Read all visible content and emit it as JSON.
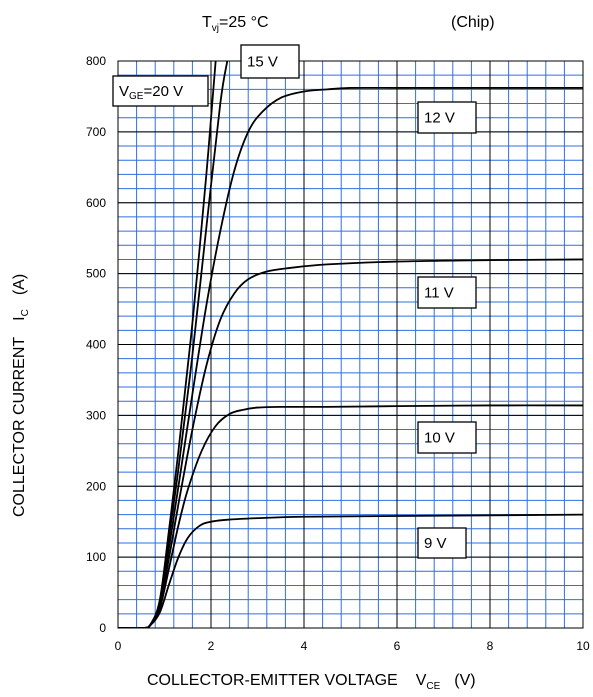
{
  "header": {
    "temperature_main": "T",
    "temperature_sub": "vj",
    "temperature_value": "=25 °C",
    "chip": "(Chip)"
  },
  "axes": {
    "xlabel_main": "COLLECTOR-EMITTER VOLTAGE",
    "xlabel_symbol": "V",
    "xlabel_sub": "CE",
    "xlabel_unit": "(V)",
    "ylabel_main": "COLLECTOR CURRENT",
    "ylabel_symbol": "I",
    "ylabel_sub": "C",
    "ylabel_unit": "(A)"
  },
  "chart_data": {
    "type": "line",
    "title": "",
    "xlim": [
      0,
      10
    ],
    "ylim": [
      0,
      800
    ],
    "x_ticks": [
      0,
      2,
      4,
      6,
      8,
      10
    ],
    "y_ticks": [
      0,
      100,
      200,
      300,
      400,
      500,
      600,
      700,
      800
    ],
    "grid": true,
    "minor_grid_divisions": {
      "x": 5,
      "y": 5
    },
    "colors": {
      "grid": "#2f6fe0",
      "major_grid": "#000000",
      "curve": "#000000",
      "background": "#ffffff"
    },
    "series": [
      {
        "name": "V_GE=20 V",
        "label_main": "V",
        "label_sub": "GE",
        "label_rest": "=20 V",
        "x": [
          0,
          0.55,
          0.7,
          0.9,
          1.1,
          1.3,
          1.6,
          1.9,
          2.1
        ],
        "y": [
          0,
          0,
          5,
          40,
          140,
          250,
          430,
          640,
          800
        ]
      },
      {
        "name": "15 V",
        "label": "15 V",
        "x": [
          0,
          0.55,
          0.7,
          0.9,
          1.1,
          1.3,
          1.6,
          1.9,
          2.2,
          2.35
        ],
        "y": [
          0,
          0,
          5,
          38,
          130,
          225,
          385,
          565,
          740,
          800
        ]
      },
      {
        "name": "12 V",
        "label": "12 V",
        "x": [
          0,
          0.55,
          0.7,
          0.9,
          1.1,
          1.3,
          1.6,
          1.9,
          2.2,
          2.5,
          2.8,
          3.1,
          3.5,
          4.0,
          4.5,
          5.0,
          6.0,
          8.0,
          10.0
        ],
        "y": [
          0,
          0,
          5,
          35,
          115,
          200,
          330,
          455,
          560,
          645,
          700,
          728,
          748,
          757,
          760,
          762,
          762,
          762,
          762
        ]
      },
      {
        "name": "11 V",
        "label": "11 V",
        "x": [
          0,
          0.55,
          0.7,
          0.9,
          1.1,
          1.3,
          1.6,
          1.9,
          2.2,
          2.5,
          2.8,
          3.2,
          3.7,
          4.5,
          6.0,
          8.0,
          10.0
        ],
        "y": [
          0,
          0,
          5,
          32,
          100,
          175,
          280,
          370,
          435,
          472,
          492,
          503,
          508,
          513,
          517,
          519,
          520
        ]
      },
      {
        "name": "10 V",
        "label": "10 V",
        "x": [
          0,
          0.55,
          0.7,
          0.9,
          1.1,
          1.3,
          1.5,
          1.8,
          2.1,
          2.4,
          2.7,
          3.0,
          3.5,
          4.5,
          6.0,
          8.0,
          10.0
        ],
        "y": [
          0,
          0,
          5,
          28,
          85,
          145,
          195,
          250,
          285,
          302,
          308,
          311,
          312,
          312,
          313,
          314,
          314
        ]
      },
      {
        "name": "9 V",
        "label": "9 V",
        "x": [
          0,
          0.55,
          0.7,
          0.9,
          1.1,
          1.3,
          1.5,
          1.75,
          2.0,
          2.4,
          3.0,
          4.0,
          6.0,
          8.0,
          10.0
        ],
        "y": [
          0,
          0,
          4,
          22,
          62,
          100,
          127,
          144,
          150,
          153,
          155,
          157,
          158,
          159,
          160
        ]
      }
    ]
  }
}
